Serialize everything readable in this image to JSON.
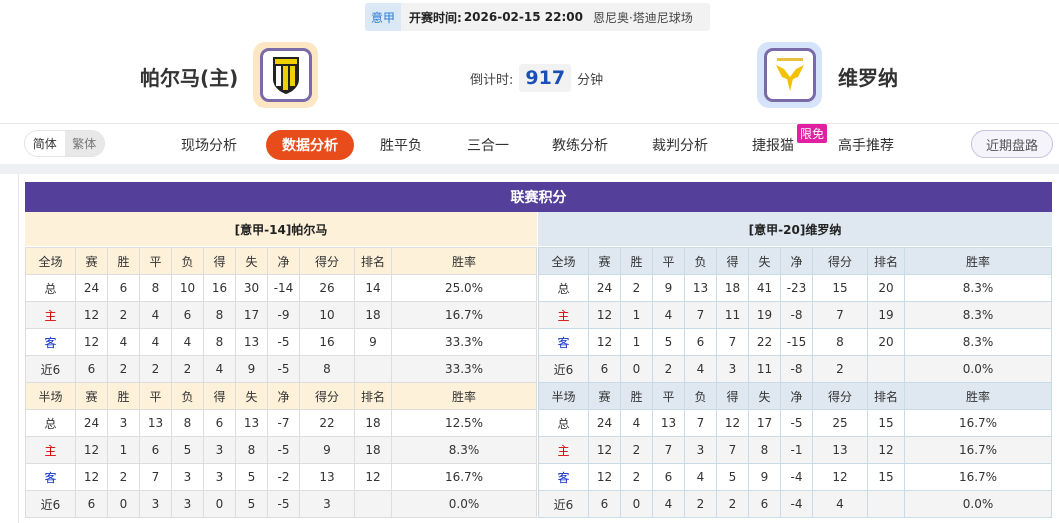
{
  "match": {
    "league": "意甲",
    "time_label": "开赛时间:",
    "time": "2026-02-15 22:00",
    "venue": "恩尼奥·塔迪尼球场"
  },
  "home": {
    "name": "帕尔马(主)",
    "logo": "parma-crest",
    "logo_bg": "#fde6c4"
  },
  "away": {
    "name": "维罗纳",
    "logo": "verona-crest",
    "logo_bg": "#d6e4fb"
  },
  "countdown": {
    "label": "倒计时:",
    "value": "917",
    "unit": "分钟"
  },
  "lang": {
    "simplified": "简体",
    "traditional": "繁体"
  },
  "nav": {
    "items": [
      "现场分析",
      "数据分析",
      "胜平负",
      "三合一",
      "教练分析",
      "裁判分析",
      "捷报猫",
      "高手推荐"
    ],
    "active": 1,
    "free_badge": "限免",
    "recent": "近期盘路"
  },
  "colors": {
    "accent": "#e84c1a",
    "title_bar": "#54409a",
    "home_red": "#dd0000",
    "away_blue": "#1030c8"
  },
  "standings": {
    "title": "联赛积分",
    "home": {
      "header": "[意甲-14]帕尔马",
      "full": {
        "columns": [
          "全场",
          "赛",
          "胜",
          "平",
          "负",
          "得",
          "失",
          "净",
          "得分",
          "排名",
          "胜率"
        ],
        "rows": [
          [
            "总",
            "24",
            "6",
            "8",
            "10",
            "16",
            "30",
            "-14",
            "26",
            "14",
            "25.0%"
          ],
          [
            "主",
            "12",
            "2",
            "4",
            "6",
            "8",
            "17",
            "-9",
            "10",
            "18",
            "16.7%"
          ],
          [
            "客",
            "12",
            "4",
            "4",
            "4",
            "8",
            "13",
            "-5",
            "16",
            "9",
            "33.3%"
          ],
          [
            "近6",
            "6",
            "2",
            "2",
            "2",
            "4",
            "9",
            "-5",
            "8",
            "",
            "33.3%"
          ]
        ]
      },
      "half": {
        "columns": [
          "半场",
          "赛",
          "胜",
          "平",
          "负",
          "得",
          "失",
          "净",
          "得分",
          "排名",
          "胜率"
        ],
        "rows": [
          [
            "总",
            "24",
            "3",
            "13",
            "8",
            "6",
            "13",
            "-7",
            "22",
            "18",
            "12.5%"
          ],
          [
            "主",
            "12",
            "1",
            "6",
            "5",
            "3",
            "8",
            "-5",
            "9",
            "18",
            "8.3%"
          ],
          [
            "客",
            "12",
            "2",
            "7",
            "3",
            "3",
            "5",
            "-2",
            "13",
            "12",
            "16.7%"
          ],
          [
            "近6",
            "6",
            "0",
            "3",
            "3",
            "0",
            "5",
            "-5",
            "3",
            "",
            "0.0%"
          ]
        ]
      }
    },
    "away": {
      "header": "[意甲-20]维罗纳",
      "full": {
        "columns": [
          "全场",
          "赛",
          "胜",
          "平",
          "负",
          "得",
          "失",
          "净",
          "得分",
          "排名",
          "胜率"
        ],
        "rows": [
          [
            "总",
            "24",
            "2",
            "9",
            "13",
            "18",
            "41",
            "-23",
            "15",
            "20",
            "8.3%"
          ],
          [
            "主",
            "12",
            "1",
            "4",
            "7",
            "11",
            "19",
            "-8",
            "7",
            "19",
            "8.3%"
          ],
          [
            "客",
            "12",
            "1",
            "5",
            "6",
            "7",
            "22",
            "-15",
            "8",
            "20",
            "8.3%"
          ],
          [
            "近6",
            "6",
            "0",
            "2",
            "4",
            "3",
            "11",
            "-8",
            "2",
            "",
            "0.0%"
          ]
        ]
      },
      "half": {
        "columns": [
          "半场",
          "赛",
          "胜",
          "平",
          "负",
          "得",
          "失",
          "净",
          "得分",
          "排名",
          "胜率"
        ],
        "rows": [
          [
            "总",
            "24",
            "4",
            "13",
            "7",
            "12",
            "17",
            "-5",
            "25",
            "15",
            "16.7%"
          ],
          [
            "主",
            "12",
            "2",
            "7",
            "3",
            "7",
            "8",
            "-1",
            "13",
            "12",
            "16.7%"
          ],
          [
            "客",
            "12",
            "2",
            "6",
            "4",
            "5",
            "9",
            "-4",
            "12",
            "15",
            "16.7%"
          ],
          [
            "近6",
            "6",
            "0",
            "4",
            "2",
            "2",
            "6",
            "-4",
            "4",
            "",
            "0.0%"
          ]
        ]
      }
    }
  }
}
